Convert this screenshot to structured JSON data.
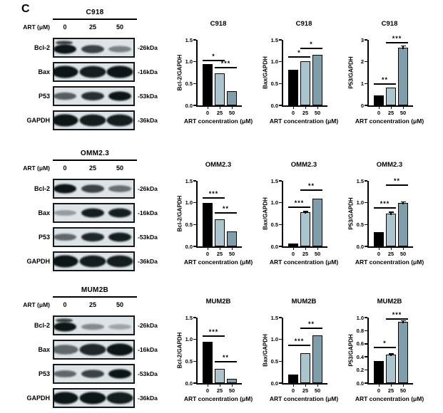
{
  "panel_label": "C",
  "colors": {
    "bar_black": "#000000",
    "bar_light": "#abc5ce",
    "bar_steel": "#7e9eac",
    "blot_background": "#dde3e6",
    "band": "#0c1318",
    "axis": "#000000"
  },
  "rows": [
    {
      "cell_line": "C918",
      "art_label": "ART (μM)",
      "doses": [
        "0",
        "25",
        "50"
      ],
      "blots": [
        {
          "protein": "Bcl-2",
          "kda": "-26kDa",
          "weight": "normal",
          "double": true,
          "bands": [
            1.0,
            0.75,
            0.4
          ]
        },
        {
          "protein": "Bax",
          "kda": "-16kDa",
          "weight": "thick",
          "double": false,
          "bands": [
            1.0,
            0.95,
            1.0
          ]
        },
        {
          "protein": "P53",
          "kda": "-53kDa",
          "weight": "normal",
          "double": false,
          "bands": [
            0.6,
            0.85,
            1.0
          ]
        },
        {
          "protein": "GAPDH",
          "kda": "-36kDa",
          "weight": "thick",
          "double": false,
          "bands": [
            1.0,
            0.95,
            0.95
          ]
        }
      ]
    },
    {
      "cell_line": "OMM2.3",
      "art_label": "ART (μM)",
      "doses": [
        "0",
        "25",
        "50"
      ],
      "blots": [
        {
          "protein": "Bcl-2",
          "kda": "-26kDa",
          "weight": "normal",
          "double": false,
          "bands": [
            1.0,
            0.75,
            0.5
          ]
        },
        {
          "protein": "Bax",
          "kda": "-16kDa",
          "weight": "normal",
          "double": false,
          "bands": [
            0.25,
            0.95,
            0.95
          ]
        },
        {
          "protein": "P53",
          "kda": "-53kDa",
          "weight": "normal",
          "double": false,
          "bands": [
            0.55,
            0.9,
            0.95
          ]
        },
        {
          "protein": "GAPDH",
          "kda": "-36kDa",
          "weight": "thick",
          "double": false,
          "bands": [
            1.0,
            0.95,
            0.95
          ]
        }
      ]
    },
    {
      "cell_line": "MUM2B",
      "art_label": "ART (μM)",
      "doses": [
        "0",
        "25",
        "50"
      ],
      "blots": [
        {
          "protein": "Bcl-2",
          "kda": "-26kDa",
          "weight": "normal",
          "double": true,
          "bands": [
            1.0,
            0.35,
            0.2
          ]
        },
        {
          "protein": "Bax",
          "kda": "-16kDa",
          "weight": "thick",
          "double": false,
          "bands": [
            0.55,
            0.9,
            1.0
          ]
        },
        {
          "protein": "P53",
          "kda": "-53kDa",
          "weight": "normal",
          "double": false,
          "bands": [
            0.55,
            0.75,
            1.0
          ]
        },
        {
          "protein": "GAPDH",
          "kda": "-36kDa",
          "weight": "thick",
          "double": false,
          "bands": [
            1.0,
            1.0,
            0.95
          ]
        }
      ]
    }
  ],
  "chart_data": [
    {
      "type": "bar",
      "group": "C918",
      "title": "C918",
      "ylabel": "Bcl-2/GAPDH",
      "xlabel": "ART concentration (μM)",
      "categories": [
        "0",
        "25",
        "50"
      ],
      "values": [
        0.95,
        0.73,
        0.33
      ],
      "errors": [
        0,
        0,
        0
      ],
      "ylim": [
        0,
        1.5
      ],
      "yticks": [
        "0.0",
        "0.5",
        "1.0",
        "1.5"
      ],
      "grid": false,
      "legend": false,
      "significance": [
        {
          "from": 0,
          "to": 1,
          "label": "*",
          "y": 1.05
        },
        {
          "from": 1,
          "to": 2,
          "label": "***",
          "y": 0.88
        }
      ]
    },
    {
      "type": "bar",
      "group": "C918",
      "title": "C918",
      "ylabel": "Bax/GAPDH",
      "xlabel": "ART concentration (μM)",
      "categories": [
        "0",
        "25",
        "50"
      ],
      "values": [
        0.82,
        1.01,
        1.16
      ],
      "errors": [
        0,
        0,
        0
      ],
      "ylim": [
        0,
        1.5
      ],
      "yticks": [
        "0.0",
        "0.5",
        "1.0",
        "1.5"
      ],
      "grid": false,
      "legend": false,
      "significance": [
        {
          "from": 0,
          "to": 1,
          "label": "*",
          "y": 1.12
        },
        {
          "from": 1,
          "to": 2,
          "label": "*",
          "y": 1.32
        }
      ]
    },
    {
      "type": "bar",
      "group": "C918",
      "title": "C918",
      "ylabel": "P53/GAPDH",
      "xlabel": "ART concentration (μM)",
      "categories": [
        "0",
        "25",
        "50"
      ],
      "values": [
        0.45,
        0.82,
        2.65
      ],
      "errors": [
        0,
        0,
        0.07
      ],
      "ylim": [
        0,
        3
      ],
      "yticks": [
        "0",
        "1",
        "2",
        "3"
      ],
      "grid": false,
      "legend": false,
      "significance": [
        {
          "from": 0,
          "to": 1,
          "label": "**",
          "y": 1.0
        },
        {
          "from": 1,
          "to": 2,
          "label": "***",
          "y": 2.9
        }
      ]
    },
    {
      "type": "bar",
      "group": "OMM2.3",
      "title": "OMM2.3",
      "ylabel": "Bcl-2/GAPDH",
      "xlabel": "ART concentration (μM)",
      "categories": [
        "0",
        "25",
        "50"
      ],
      "values": [
        1.0,
        0.62,
        0.35
      ],
      "errors": [
        0,
        0,
        0
      ],
      "ylim": [
        0,
        1.5
      ],
      "yticks": [
        "0.0",
        "0.5",
        "1.0",
        "1.5"
      ],
      "grid": false,
      "legend": false,
      "significance": [
        {
          "from": 0,
          "to": 1,
          "label": "***",
          "y": 1.13
        },
        {
          "from": 1,
          "to": 2,
          "label": "**",
          "y": 0.78
        }
      ]
    },
    {
      "type": "bar",
      "group": "OMM2.3",
      "title": "OMM2.3",
      "ylabel": "Bax/GAPDH",
      "xlabel": "ART concentration (μM)",
      "categories": [
        "0",
        "25",
        "50"
      ],
      "values": [
        0.07,
        0.78,
        1.1
      ],
      "errors": [
        0,
        0.02,
        0
      ],
      "ylim": [
        0,
        1.5
      ],
      "yticks": [
        "0.0",
        "0.5",
        "1.0",
        "1.5"
      ],
      "grid": false,
      "legend": false,
      "significance": [
        {
          "from": 0,
          "to": 1,
          "label": "***",
          "y": 0.92
        },
        {
          "from": 1,
          "to": 2,
          "label": "**",
          "y": 1.3
        }
      ]
    },
    {
      "type": "bar",
      "group": "OMM2.3",
      "title": "OMM2.3",
      "ylabel": "P53/GAPDH",
      "xlabel": "ART concentration (μM)",
      "categories": [
        "0",
        "25",
        "50"
      ],
      "values": [
        0.33,
        0.75,
        1.0
      ],
      "errors": [
        0,
        0.03,
        0.02
      ],
      "ylim": [
        0,
        1.5
      ],
      "yticks": [
        "0.0",
        "0.5",
        "1.0",
        "1.5"
      ],
      "grid": false,
      "legend": false,
      "significance": [
        {
          "from": 0,
          "to": 1,
          "label": "***",
          "y": 0.9
        },
        {
          "from": 1,
          "to": 2,
          "label": "**",
          "y": 1.42
        }
      ]
    },
    {
      "type": "bar",
      "group": "MUM2B",
      "title": "MUM2B",
      "ylabel": "Bcl-2/GAPDH",
      "xlabel": "ART concentration (μM)",
      "categories": [
        "0",
        "25",
        "50"
      ],
      "values": [
        0.95,
        0.32,
        0.09
      ],
      "errors": [
        0,
        0,
        0
      ],
      "ylim": [
        0,
        1.5
      ],
      "yticks": [
        "0.0",
        "0.5",
        "1.0",
        "1.5"
      ],
      "grid": false,
      "legend": false,
      "significance": [
        {
          "from": 0,
          "to": 1,
          "label": "***",
          "y": 1.1
        },
        {
          "from": 1,
          "to": 2,
          "label": "**",
          "y": 0.5
        }
      ]
    },
    {
      "type": "bar",
      "group": "MUM2B",
      "title": "MUM2B",
      "ylabel": "Bax/GAPDH",
      "xlabel": "ART concentration (μM)",
      "categories": [
        "0",
        "25",
        "50"
      ],
      "values": [
        0.2,
        0.68,
        1.1
      ],
      "errors": [
        0,
        0,
        0
      ],
      "ylim": [
        0,
        1.5
      ],
      "yticks": [
        "0.0",
        "0.5",
        "1.0",
        "1.5"
      ],
      "grid": false,
      "legend": false,
      "significance": [
        {
          "from": 0,
          "to": 1,
          "label": "***",
          "y": 0.88
        },
        {
          "from": 1,
          "to": 2,
          "label": "**",
          "y": 1.27
        }
      ]
    },
    {
      "type": "bar",
      "group": "MUM2B",
      "title": "MUM2B",
      "ylabel": "P53/GAPDH",
      "xlabel": "ART concentration (μM)",
      "categories": [
        "0",
        "25",
        "50"
      ],
      "values": [
        0.34,
        0.43,
        0.93
      ],
      "errors": [
        0,
        0.015,
        0.02
      ],
      "ylim": [
        0,
        1.0
      ],
      "yticks": [
        "0.0",
        "0.2",
        "0.4",
        "0.6",
        "0.8",
        "1.0"
      ],
      "grid": false,
      "legend": false,
      "significance": [
        {
          "from": 0,
          "to": 1,
          "label": "*",
          "y": 0.55
        },
        {
          "from": 1,
          "to": 2,
          "label": "***",
          "y": 0.99
        }
      ]
    }
  ]
}
